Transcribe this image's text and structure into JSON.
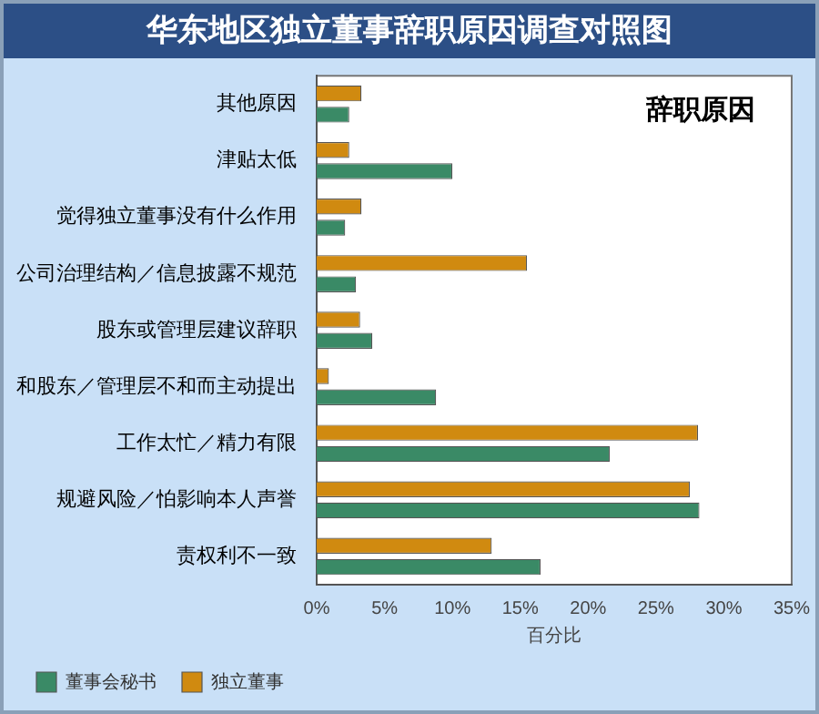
{
  "chart_data": {
    "type": "bar",
    "orientation": "horizontal",
    "title": "华东地区独立董事辞职原因调查对照图",
    "subtitle": "辞职原因",
    "xlabel": "百分比",
    "categories": [
      "其他原因",
      "津贴太低",
      "觉得独立董事没有什么作用",
      "公司治理结构／信息披露不规范",
      "股东或管理层建议辞职",
      "和股东／管理层不和而主动提出",
      "工作太忙／精力有限",
      "规避风险／怕影响本人声誉",
      "责权利不一致"
    ],
    "series": [
      {
        "name": "董事会秘书",
        "color": "#3a8a66",
        "values": [
          2.4,
          10,
          2.1,
          2.9,
          4.1,
          8.8,
          21.6,
          28.2,
          16.5
        ]
      },
      {
        "name": "独立董事",
        "color": "#d08a10",
        "values": [
          3.3,
          2.4,
          3.3,
          15.5,
          3.2,
          0.9,
          28.1,
          27.5,
          12.9
        ]
      }
    ],
    "xlim": [
      0,
      35
    ],
    "xticks": [
      {
        "value": 0,
        "label": "0%"
      },
      {
        "value": 5,
        "label": "5%"
      },
      {
        "value": 10,
        "label": "10%"
      },
      {
        "value": 15,
        "label": "15%"
      },
      {
        "value": 20,
        "label": "20%"
      },
      {
        "value": 25,
        "label": "25%"
      },
      {
        "value": 30,
        "label": "30%"
      },
      {
        "value": 35,
        "label": "35%"
      }
    ],
    "grid": false,
    "legend": "bottom left"
  }
}
